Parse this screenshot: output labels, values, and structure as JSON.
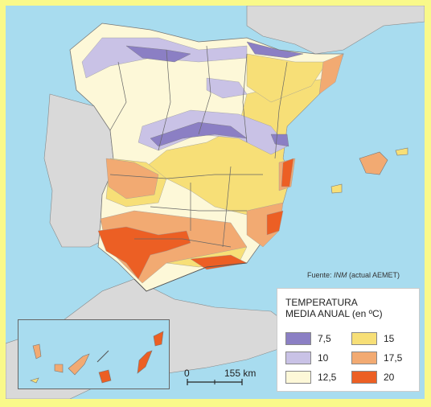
{
  "source": {
    "prefix": "Fuente: ",
    "org": "INM",
    "suffix": " (actual AEMET)"
  },
  "legend": {
    "title_line1": "TEMPERATURA",
    "title_line2": "MEDIA ANUAL (en ºC)",
    "items": [
      {
        "label": "7,5",
        "color": "#8b7fc4"
      },
      {
        "label": "10",
        "color": "#c9c2e6"
      },
      {
        "label": "12,5",
        "color": "#fdf8d8"
      },
      {
        "label": "15",
        "color": "#f7df77"
      },
      {
        "label": "17,5",
        "color": "#f2aa72"
      },
      {
        "label": "20",
        "color": "#ec5f24"
      }
    ]
  },
  "scale": {
    "start": "0",
    "end": "155 km"
  },
  "colors": {
    "sea": "#a8dcef",
    "land_other": "#d9d9d9",
    "frame": "#f9f98a"
  }
}
